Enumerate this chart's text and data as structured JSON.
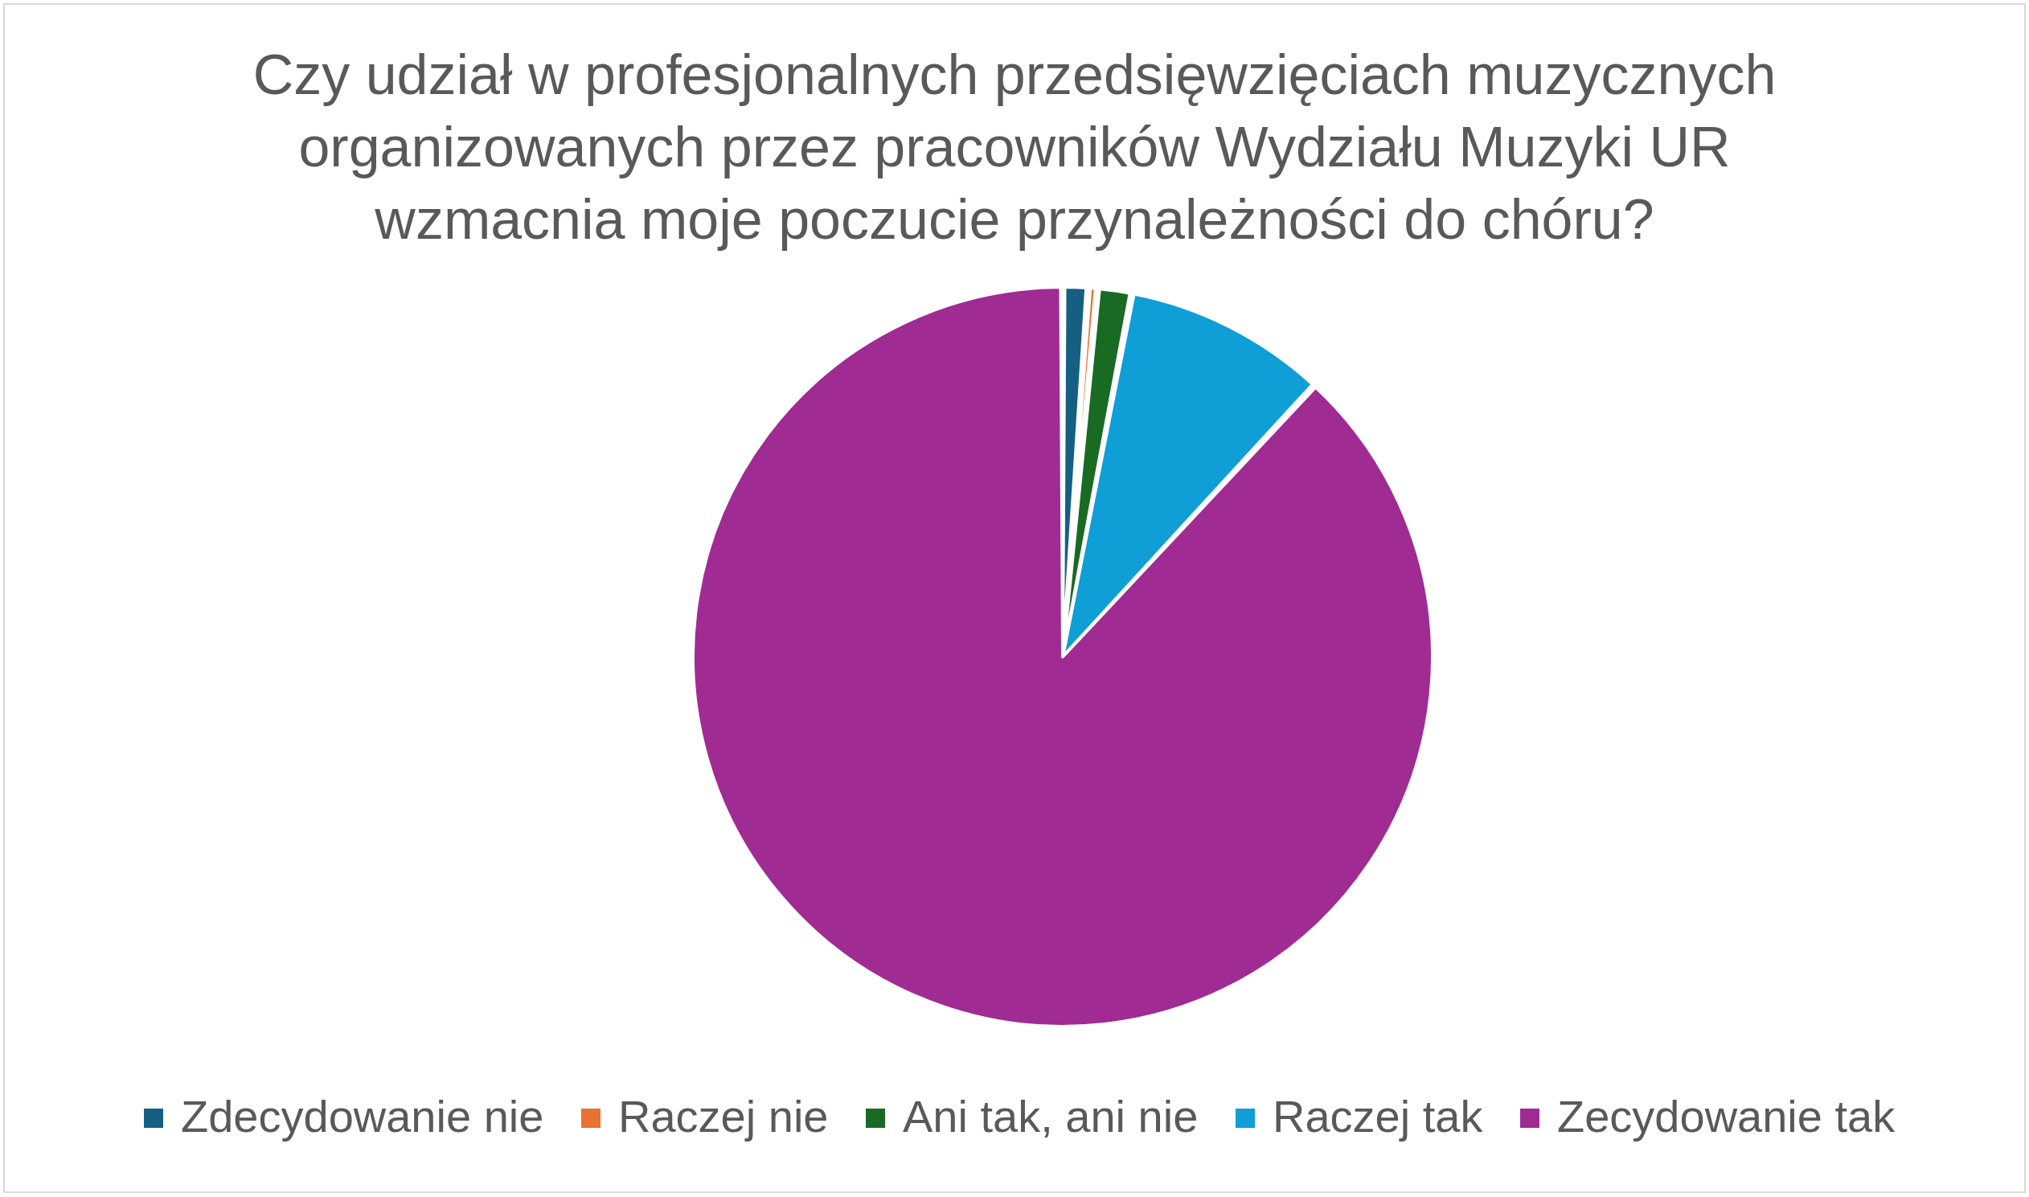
{
  "chart_data": {
    "type": "pie",
    "title": "Czy udział w profesjonalnych przedsięwzięciach muzycznych\norganizowanych przez pracowników Wydziału Muzyki UR\nwzmacnia moje poczucie przynależności do chóru?",
    "categories": [
      "Zdecydowanie nie",
      "Raczej nie",
      "Ani tak, ani nie",
      "Raczej tak",
      "Zecydowanie tak"
    ],
    "values": [
      1.1,
      0.4,
      1.5,
      8.9,
      88.1
    ],
    "colors": [
      "#156082",
      "#e97132",
      "#196b24",
      "#0f9ed5",
      "#a02b93"
    ],
    "legend": "bottom"
  }
}
